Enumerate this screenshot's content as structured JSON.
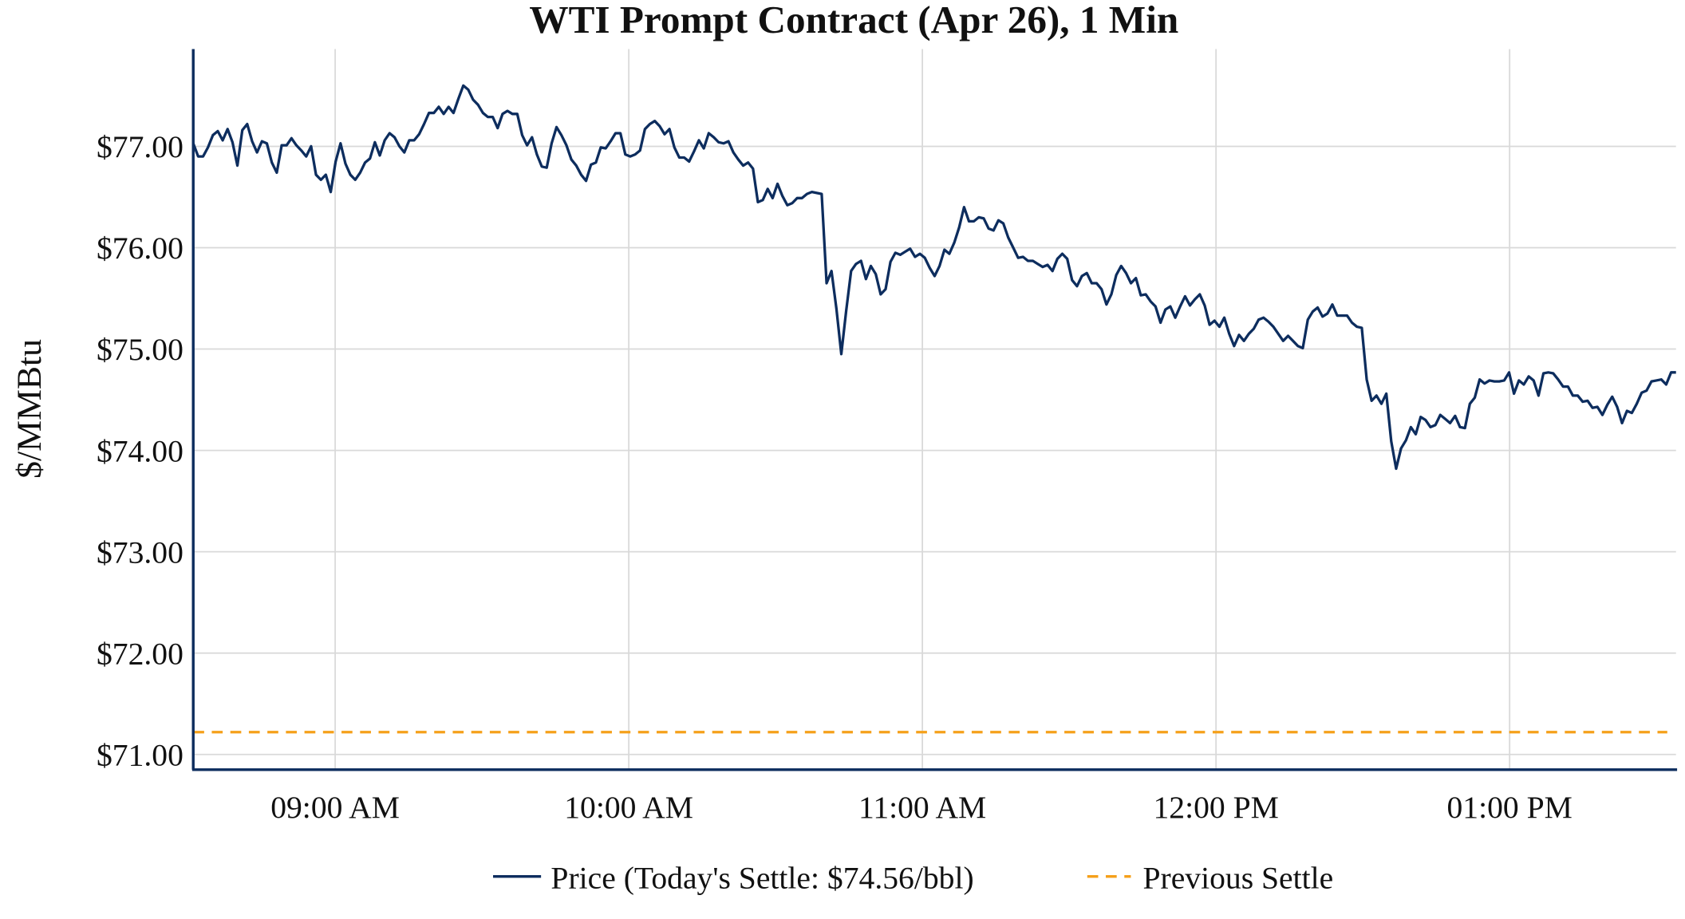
{
  "chart_data": {
    "type": "line",
    "title": "WTI Prompt Contract (Apr 26), 1 Min",
    "xlabel": "",
    "ylabel": "$/MMBtu",
    "x_range": [
      "08:31",
      "13:34"
    ],
    "xlim_minutes": [
      511,
      814
    ],
    "ylim": [
      70.85,
      77.96
    ],
    "grid": true,
    "legend_position": "bottom-center",
    "y_ticks": [
      {
        "value": 71,
        "label": "$71.00"
      },
      {
        "value": 72,
        "label": "$72.00"
      },
      {
        "value": 73,
        "label": "$73.00"
      },
      {
        "value": 74,
        "label": "$74.00"
      },
      {
        "value": 75,
        "label": "$75.00"
      },
      {
        "value": 76,
        "label": "$76.00"
      },
      {
        "value": 77,
        "label": "$77.00"
      }
    ],
    "x_ticks": [
      {
        "minute": 540,
        "label": "09:00 AM"
      },
      {
        "minute": 600,
        "label": "10:00 AM"
      },
      {
        "minute": 660,
        "label": "11:00 AM"
      },
      {
        "minute": 720,
        "label": "12:00 PM"
      },
      {
        "minute": 780,
        "label": "01:00 PM"
      }
    ],
    "series": [
      {
        "name": "Price (Today's Settle: $74.56/bbl)",
        "color": "#0d2d5e",
        "style": "solid",
        "values": [
          77.03,
          76.9,
          76.9,
          76.99,
          77.11,
          77.15,
          77.06,
          77.17,
          77.04,
          76.81,
          77.16,
          77.22,
          77.05,
          76.94,
          77.05,
          77.03,
          76.84,
          76.74,
          77.01,
          77.01,
          77.08,
          77.01,
          76.96,
          76.9,
          77.0,
          76.72,
          76.67,
          76.72,
          76.55,
          76.85,
          77.03,
          76.83,
          76.72,
          76.67,
          76.74,
          76.84,
          76.88,
          77.04,
          76.91,
          77.06,
          77.13,
          77.09,
          77.0,
          76.94,
          77.06,
          77.06,
          77.12,
          77.22,
          77.33,
          77.33,
          77.39,
          77.32,
          77.39,
          77.33,
          77.47,
          77.6,
          77.56,
          77.46,
          77.41,
          77.33,
          77.29,
          77.29,
          77.18,
          77.32,
          77.35,
          77.32,
          77.32,
          77.11,
          77.01,
          77.09,
          76.92,
          76.8,
          76.79,
          77.03,
          77.19,
          77.11,
          77.01,
          76.87,
          76.81,
          76.72,
          76.66,
          76.82,
          76.84,
          76.99,
          76.98,
          77.05,
          77.13,
          77.13,
          76.92,
          76.9,
          76.92,
          76.96,
          77.17,
          77.22,
          77.25,
          77.2,
          77.12,
          77.17,
          76.99,
          76.89,
          76.89,
          76.85,
          76.95,
          77.06,
          76.98,
          77.13,
          77.09,
          77.04,
          77.03,
          77.05,
          76.94,
          76.87,
          76.81,
          76.84,
          76.78,
          76.45,
          76.47,
          76.58,
          76.49,
          76.63,
          76.51,
          76.42,
          76.44,
          76.49,
          76.49,
          76.53,
          76.55,
          76.54,
          76.53,
          75.65,
          75.77,
          75.4,
          74.95,
          75.38,
          75.77,
          75.84,
          75.87,
          75.69,
          75.82,
          75.74,
          75.54,
          75.59,
          75.86,
          75.95,
          75.93,
          75.96,
          75.99,
          75.91,
          75.94,
          75.9,
          75.8,
          75.72,
          75.82,
          75.98,
          75.94,
          76.05,
          76.2,
          76.4,
          76.26,
          76.26,
          76.3,
          76.29,
          76.19,
          76.17,
          76.27,
          76.24,
          76.1,
          76.0,
          75.9,
          75.91,
          75.87,
          75.87,
          75.84,
          75.81,
          75.83,
          75.77,
          75.89,
          75.94,
          75.89,
          75.68,
          75.62,
          75.72,
          75.75,
          75.65,
          75.65,
          75.59,
          75.44,
          75.54,
          75.73,
          75.82,
          75.75,
          75.65,
          75.7,
          75.53,
          75.54,
          75.47,
          75.42,
          75.26,
          75.39,
          75.42,
          75.31,
          75.42,
          75.52,
          75.43,
          75.49,
          75.54,
          75.43,
          75.24,
          75.28,
          75.22,
          75.31,
          75.15,
          75.03,
          75.14,
          75.08,
          75.15,
          75.2,
          75.29,
          75.31,
          75.27,
          75.22,
          75.15,
          75.08,
          75.13,
          75.08,
          75.03,
          75.01,
          75.29,
          75.37,
          75.41,
          75.32,
          75.35,
          75.44,
          75.33,
          75.33,
          75.33,
          75.26,
          75.22,
          75.21,
          74.7,
          74.49,
          74.54,
          74.46,
          74.56,
          74.09,
          73.82,
          74.02,
          74.1,
          74.23,
          74.16,
          74.33,
          74.3,
          74.23,
          74.25,
          74.35,
          74.31,
          74.27,
          74.34,
          74.23,
          74.22,
          74.46,
          74.52,
          74.7,
          74.66,
          74.69,
          74.68,
          74.68,
          74.69,
          74.77,
          74.56,
          74.69,
          74.65,
          74.73,
          74.69,
          74.54,
          74.76,
          74.77,
          74.76,
          74.7,
          74.63,
          74.63,
          74.54,
          74.54,
          74.48,
          74.49,
          74.42,
          74.43,
          74.35,
          74.45,
          74.53,
          74.43,
          74.27,
          74.39,
          74.37,
          74.46,
          74.57,
          74.59,
          74.68,
          74.69,
          74.7,
          74.65,
          74.77,
          74.77
        ]
      },
      {
        "name": "Previous Settle",
        "color": "#f5a01a",
        "style": "dashed",
        "value": 71.22
      }
    ]
  }
}
